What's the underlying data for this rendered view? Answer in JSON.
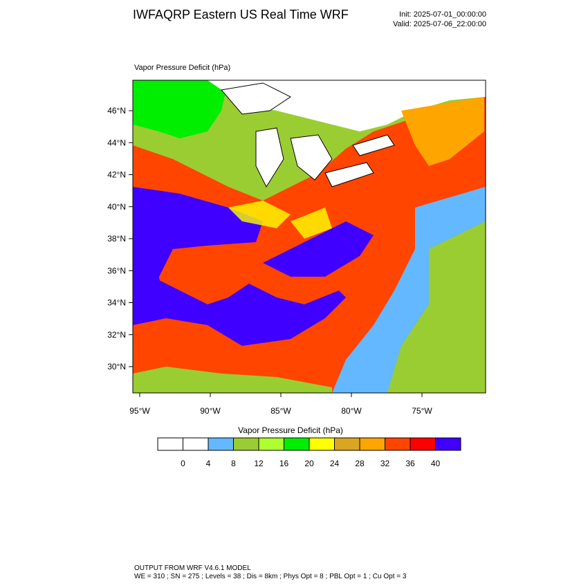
{
  "header": {
    "title": "IWFAQRP Eastern US Real Time WRF",
    "init": "Init: 2025-07-01_00:00:00",
    "valid": "Valid: 2025-07-06_22:00:00"
  },
  "map": {
    "subtitle": "Vapor Pressure Deficit   (hPa)",
    "lat_labels": [
      "46°N",
      "44°N",
      "42°N",
      "40°N",
      "38°N",
      "36°N",
      "34°N",
      "32°N",
      "30°N"
    ],
    "lon_labels": [
      "95°W",
      "90°W",
      "85°W",
      "80°W",
      "75°W"
    ]
  },
  "colorbar": {
    "title": "Vapor Pressure Deficit  (hPa)",
    "levels": [
      0,
      4,
      8,
      12,
      16,
      20,
      24,
      28,
      32,
      36,
      40
    ],
    "colors": [
      "#ffffff",
      "#ffffff",
      "#63b8ff",
      "#9acd32",
      "#adff2f",
      "#00ee00",
      "#ffff00",
      "#daa520",
      "#ffa500",
      "#ff4500",
      "#ff0000",
      "#3f00ff"
    ]
  },
  "footer": {
    "line1": "OUTPUT FROM WRF V4.6.1 MODEL",
    "line2": "WE = 310 ; SN = 275 ; Levels = 38 ; Dis = 8km ; Phys Opt = 8 ; PBL Opt = 1 ; Cu Opt = 3"
  }
}
